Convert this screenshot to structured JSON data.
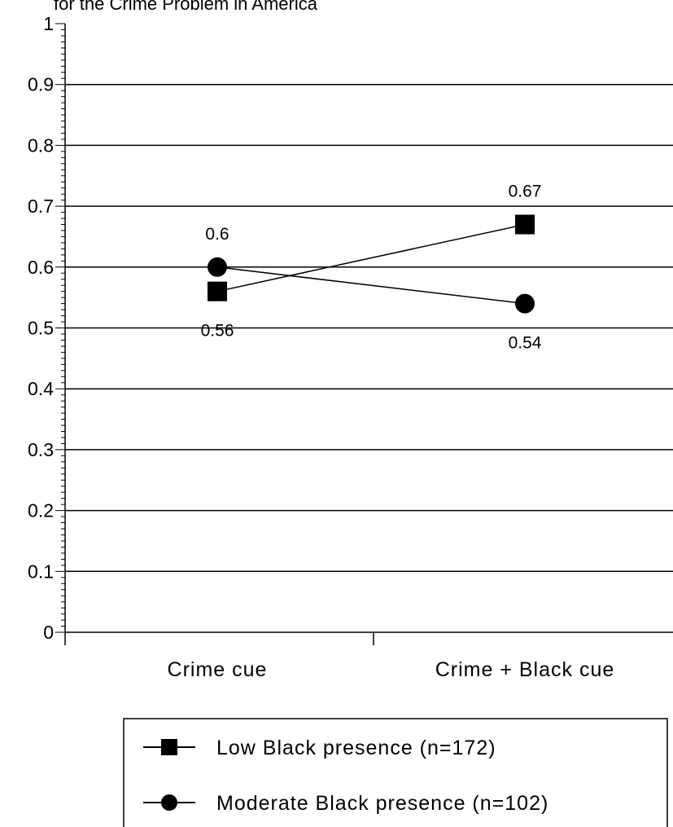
{
  "chart_data": {
    "type": "line",
    "title": "for the Crime Problem in America",
    "categories": [
      "Crime cue",
      "Crime + Black cue"
    ],
    "ylim": [
      0,
      1
    ],
    "yticks": [
      "0",
      "0.1",
      "0.2",
      "0.3",
      "0.4",
      "0.5",
      "0.6",
      "0.7",
      "0.8",
      "0.9",
      "1"
    ],
    "ytick_values": [
      0,
      0.1,
      0.2,
      0.3,
      0.4,
      0.5,
      0.6,
      0.7,
      0.8,
      0.9,
      1
    ],
    "grid": true,
    "legend_position": "bottom",
    "series": [
      {
        "name": "Low Black presence (n=172)",
        "marker": "square",
        "values": [
          0.56,
          0.67
        ],
        "data_labels": [
          "0.56",
          "0.67"
        ],
        "label_position": [
          "below",
          "above"
        ]
      },
      {
        "name": "Moderate Black presence (n=102)",
        "marker": "circle",
        "values": [
          0.6,
          0.54
        ],
        "data_labels": [
          "0.6",
          "0.54"
        ],
        "label_position": [
          "above",
          "below"
        ]
      }
    ],
    "colors": {
      "line": "#000000",
      "grid": "#000000",
      "background": "#ffffff"
    }
  }
}
